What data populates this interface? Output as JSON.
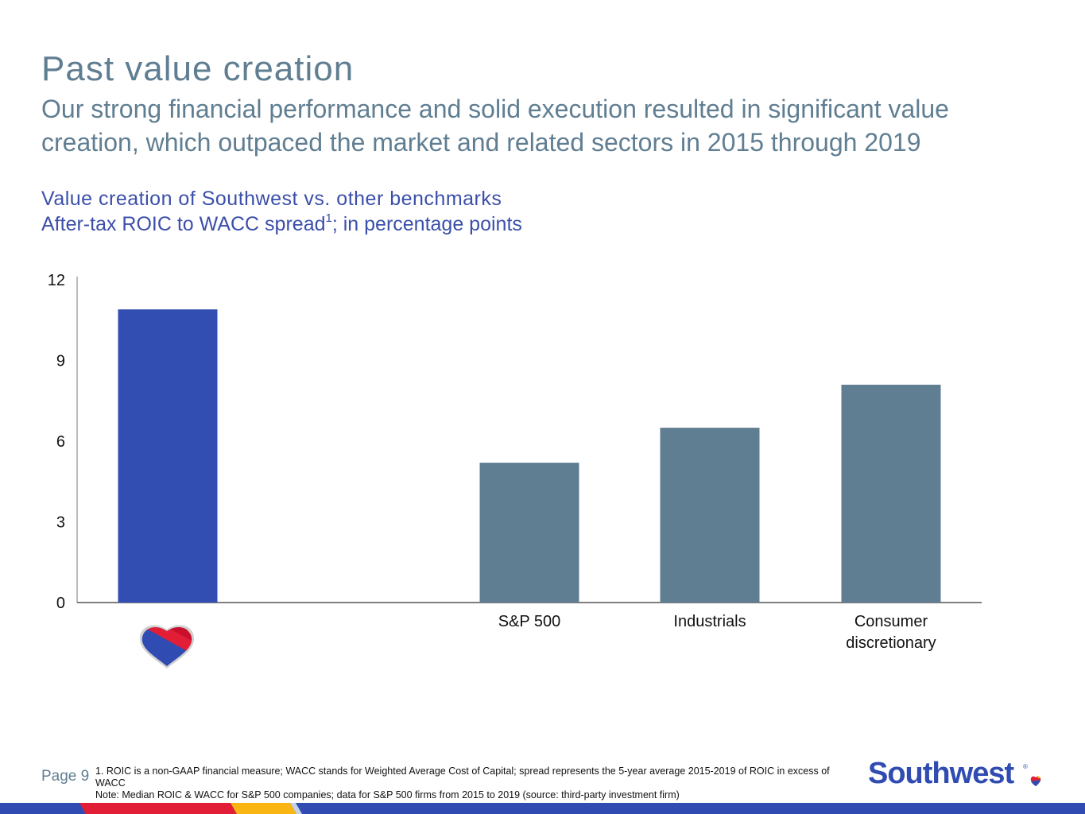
{
  "page": {
    "title": "Past value creation",
    "subtitle": "Our strong financial performance and solid execution resulted in significant value creation, which outpaced the market and related sectors in 2015 through 2019",
    "chart_title": "Value creation of Southwest vs. other benchmarks",
    "chart_subtitle_main": "After-tax ROIC to WACC spread",
    "chart_subtitle_sup": "1",
    "chart_subtitle_tail": "; in percentage points"
  },
  "chart_data": {
    "type": "bar",
    "categories": [
      "Southwest",
      "",
      "S&P 500",
      "Industrials",
      "Consumer discretionary"
    ],
    "category_labels": [
      [],
      [],
      [
        "S&P 500"
      ],
      [
        "Industrials"
      ],
      [
        "Consumer",
        "discretionary"
      ]
    ],
    "values": [
      10.9,
      null,
      5.2,
      6.5,
      8.1
    ],
    "bar_colors": [
      "#324eb3",
      null,
      "#607e92",
      "#607e92",
      "#607e92"
    ],
    "yticks": [
      0,
      3,
      6,
      9,
      12
    ],
    "ylim": [
      0,
      12
    ],
    "first_category_icon": "southwest-heart-logo"
  },
  "footer": {
    "page_label": "Page 9",
    "footnote_1": "1. ROIC is a non-GAAP financial measure; WACC stands for Weighted Average Cost of Capital; spread represents the 5-year average 2015-2019 of ROIC in excess of WACC",
    "note": "Note: Median ROIC & WACC for S&P 500 companies; data for S&P 500 firms from 2015 to 2019 (source: third-party investment firm)",
    "brand": "Southwest",
    "brand_reg": "®"
  },
  "colors": {
    "title": "#607e92",
    "chart_heading": "#3b4faa",
    "southwest_blue": "#324eb3",
    "benchmark_gray": "#607e92"
  }
}
